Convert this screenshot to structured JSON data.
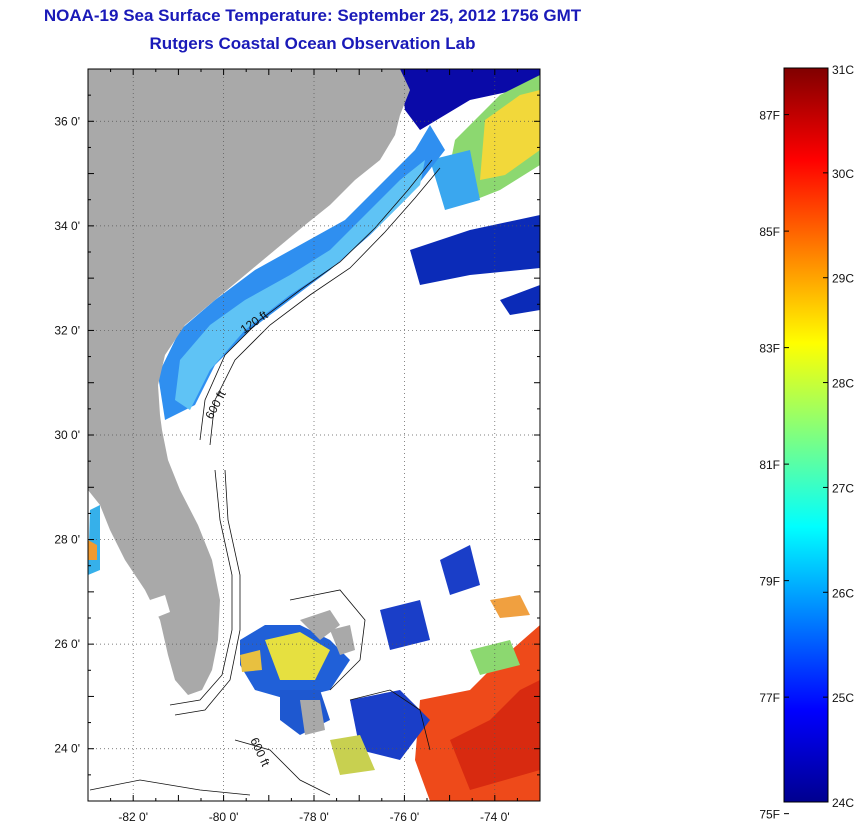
{
  "header": {
    "title": "NOAA-19 Sea Surface Temperature:  September 25, 2012 1756 GMT",
    "subtitle": "Rutgers Coastal Ocean Observation Lab"
  },
  "map": {
    "lat_range": [
      23,
      37
    ],
    "lon_range": [
      -83,
      -73
    ],
    "lat_ticks": [
      {
        "value": 24,
        "label": "24 0'"
      },
      {
        "value": 26,
        "label": "26 0'"
      },
      {
        "value": 28,
        "label": "28 0'"
      },
      {
        "value": 30,
        "label": "30 0'"
      },
      {
        "value": 32,
        "label": "32 0'"
      },
      {
        "value": 34,
        "label": "34 0'"
      },
      {
        "value": 36,
        "label": "36 0'"
      }
    ],
    "lon_ticks": [
      {
        "value": -82,
        "label": "-82 0'"
      },
      {
        "value": -80,
        "label": "-80 0'"
      },
      {
        "value": -78,
        "label": "-78 0'"
      },
      {
        "value": -76,
        "label": "-76 0'"
      },
      {
        "value": -74,
        "label": "-74 0'"
      }
    ],
    "grid": "dotted",
    "land_color": "#a9a9a9",
    "cloud_color": "#ffffff",
    "contour_labels": [
      "120 ft",
      "600 ft",
      "600 ft"
    ]
  },
  "colorbar": {
    "range_c": [
      24,
      31
    ],
    "celsius_labels": [
      "31C",
      "30C",
      "29C",
      "28C",
      "27C",
      "26C",
      "25C",
      "24C"
    ],
    "fahrenheit_labels": [
      {
        "value_f": 87,
        "label": "87F"
      },
      {
        "value_f": 85,
        "label": "85F"
      },
      {
        "value_f": 83,
        "label": "83F"
      },
      {
        "value_f": 81,
        "label": "81F"
      },
      {
        "value_f": 79,
        "label": "79F"
      },
      {
        "value_f": 77,
        "label": "77F"
      },
      {
        "value_f": 75,
        "label": "75F"
      }
    ],
    "colormap": "jet"
  }
}
